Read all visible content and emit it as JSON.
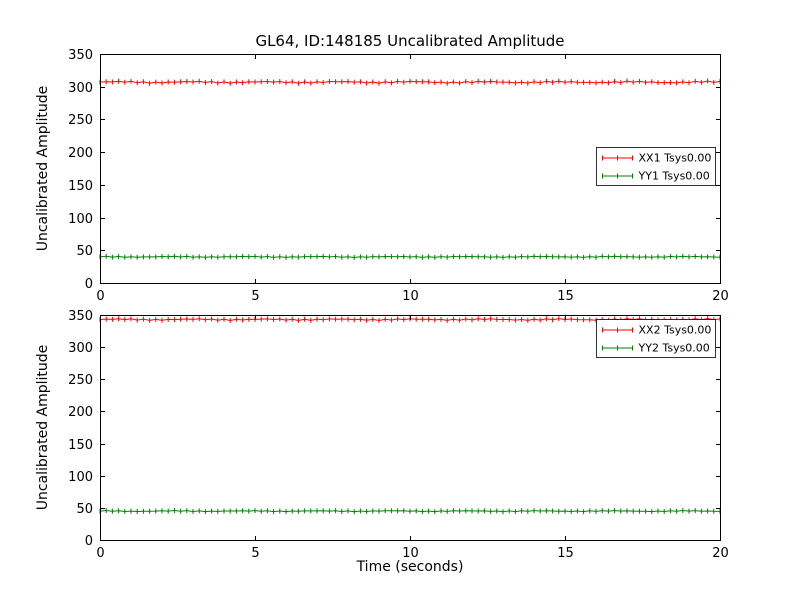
{
  "figure": {
    "title": "GL64, ID:148185 Uncalibrated Amplitude",
    "background": "#ffffff",
    "frame_color": "#000000"
  },
  "chart_data": [
    {
      "type": "line",
      "title": "GL64, ID:148185 Uncalibrated Amplitude",
      "xlabel": "",
      "ylabel": "Uncalibrated Amplitude",
      "xlim": [
        0,
        20
      ],
      "ylim": [
        0,
        350
      ],
      "xticks": [
        0,
        5,
        10,
        15,
        20
      ],
      "yticks": [
        0,
        50,
        100,
        150,
        200,
        250,
        300,
        350
      ],
      "grid": false,
      "legend_position": "center-right",
      "marker": "errorbar-caps",
      "series": [
        {
          "name": "XX1 Tsys0.00",
          "color": "#ff0000",
          "y": 307,
          "noise": 1.5
        },
        {
          "name": "YY1 Tsys0.00",
          "color": "#008000",
          "y": 40,
          "noise": 0.8
        }
      ]
    },
    {
      "type": "line",
      "title": "",
      "xlabel": "Time (seconds)",
      "ylabel": "Uncalibrated Amplitude",
      "xlim": [
        0,
        20
      ],
      "ylim": [
        0,
        350
      ],
      "xticks": [
        0,
        5,
        10,
        15,
        20
      ],
      "yticks": [
        0,
        50,
        100,
        150,
        200,
        250,
        300,
        350
      ],
      "grid": false,
      "legend_position": "top-right",
      "marker": "errorbar-caps",
      "series": [
        {
          "name": "XX2 Tsys0.00",
          "color": "#ff0000",
          "y": 343,
          "noise": 1.3
        },
        {
          "name": "YY2 Tsys0.00",
          "color": "#008000",
          "y": 45,
          "noise": 0.8
        }
      ]
    }
  ]
}
